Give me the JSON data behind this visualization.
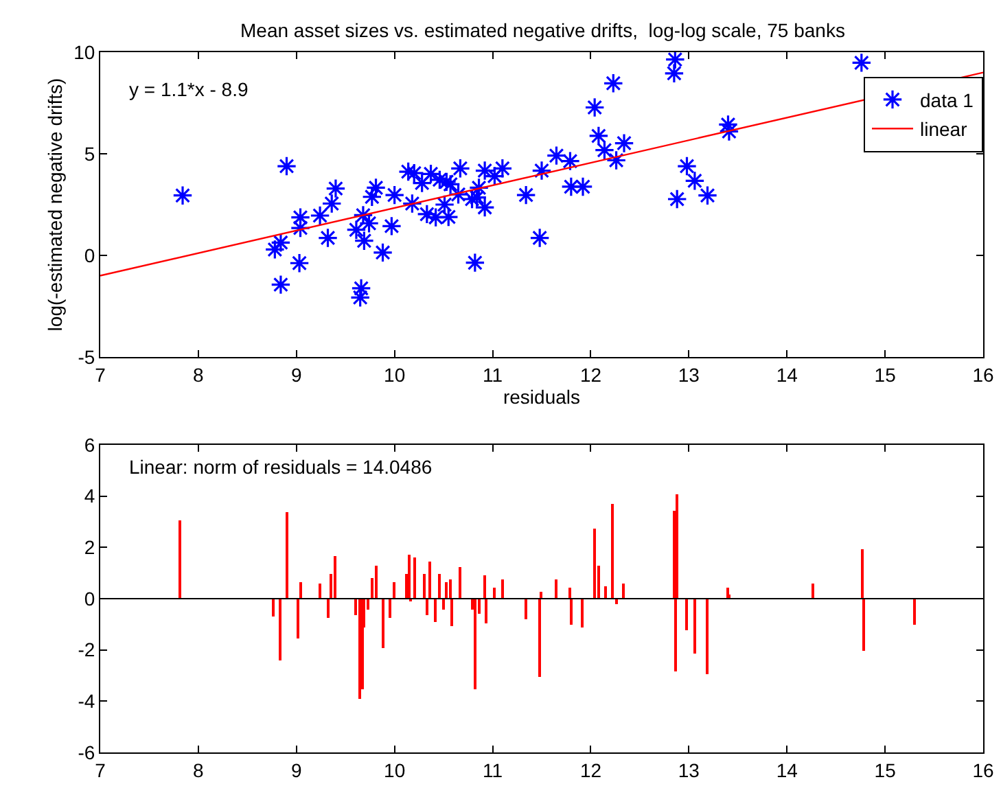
{
  "chart_data": [
    {
      "type": "scatter",
      "title": "Mean asset sizes vs. estimated negative drifts,  log-log scale, 75 banks",
      "xlabel": "residuals",
      "ylabel": "log(-estimated negative drifts)",
      "series": [
        {
          "name": "data 1",
          "type": "scatter",
          "color": "#0000ff",
          "marker": "cross",
          "x": [
            7.84,
            8.9,
            9.4,
            9.36,
            9.24,
            9.04,
            9.04,
            8.84,
            8.78,
            9.03,
            8.84,
            9.32,
            9.61,
            9.68,
            9.74,
            9.69,
            9.66,
            9.65,
            9.81,
            9.77,
            9.88,
            9.97,
            10.0,
            10.18,
            10.14,
            10.2,
            10.28,
            10.37,
            10.46,
            10.53,
            10.57,
            10.67,
            10.51,
            10.33,
            10.42,
            10.55,
            10.65,
            10.79,
            10.86,
            10.92,
            10.84,
            10.92,
            11.02,
            11.1,
            10.82,
            11.34,
            11.5,
            11.48,
            11.65,
            11.79,
            11.8,
            11.92,
            12.04,
            12.23,
            12.08,
            12.14,
            12.26,
            12.34,
            12.86,
            12.85,
            12.88,
            12.98,
            13.06,
            13.19,
            13.4,
            13.41,
            14.76
          ],
          "values": [
            2.95,
            4.39,
            3.29,
            2.55,
            1.96,
            1.87,
            1.35,
            0.63,
            0.29,
            -0.38,
            -1.44,
            0.86,
            1.26,
            1.98,
            1.58,
            0.72,
            -1.62,
            -2.07,
            3.33,
            2.88,
            0.14,
            1.44,
            2.97,
            2.55,
            4.12,
            4.05,
            3.56,
            4.01,
            3.72,
            3.62,
            3.5,
            4.28,
            2.5,
            2.03,
            1.87,
            1.89,
            3.0,
            2.77,
            3.33,
            4.17,
            2.85,
            2.36,
            3.9,
            4.28,
            -0.36,
            2.97,
            4.17,
            0.86,
            4.91,
            4.64,
            3.38,
            3.38,
            7.28,
            8.47,
            5.88,
            5.18,
            4.68,
            5.52,
            9.64,
            8.96,
            2.77,
            4.39,
            3.67,
            2.95,
            6.44,
            6.1,
            9.48
          ]
        },
        {
          "name": "linear",
          "type": "line",
          "color": "#ff0000",
          "line_style": "solid",
          "x": [
            7,
            16
          ],
          "values": [
            -1.0,
            9.0
          ]
        }
      ],
      "xlim": [
        7,
        16
      ],
      "xticks": [
        7,
        8,
        9,
        10,
        11,
        12,
        13,
        14,
        15,
        16
      ],
      "ylim": [
        -5,
        10
      ],
      "yticks": [
        -5,
        0,
        5,
        10
      ],
      "legend": "top right",
      "annotations": [
        "y = 1.1*x - 8.9"
      ]
    },
    {
      "type": "bar",
      "series": [
        {
          "color": "#ff0000",
          "x": [
            7.82,
            8.77,
            8.84,
            8.9,
            9.02,
            9.04,
            9.24,
            9.32,
            9.36,
            9.4,
            9.61,
            9.65,
            9.67,
            9.69,
            9.73,
            9.77,
            9.82,
            9.88,
            9.96,
            10.0,
            10.13,
            10.15,
            10.17,
            10.21,
            10.3,
            10.34,
            10.36,
            10.42,
            10.46,
            10.5,
            10.53,
            10.57,
            10.58,
            10.67,
            10.8,
            10.82,
            10.86,
            10.92,
            10.93,
            11.02,
            11.11,
            11.34,
            11.48,
            11.5,
            11.65,
            11.79,
            11.81,
            11.92,
            12.04,
            12.08,
            12.15,
            12.23,
            12.26,
            12.34,
            12.85,
            12.87,
            12.88,
            12.98,
            13.06,
            13.19,
            13.4,
            13.42,
            14.27,
            14.77,
            14.79,
            15.3
          ],
          "values": [
            3.05,
            -0.7,
            -2.42,
            3.37,
            -1.55,
            0.64,
            0.57,
            -0.75,
            0.96,
            1.68,
            -0.66,
            -3.92,
            -3.51,
            -1.14,
            -0.43,
            0.82,
            1.28,
            -1.94,
            -0.75,
            0.64,
            0.94,
            1.69,
            -0.11,
            1.6,
            0.96,
            -0.66,
            1.44,
            -0.91,
            0.96,
            -0.43,
            0.64,
            0.73,
            -1.05,
            1.21,
            -0.43,
            -3.51,
            -0.57,
            0.89,
            -0.96,
            0.43,
            0.73,
            -0.82,
            -3.03,
            0.25,
            0.73,
            0.41,
            -1.0,
            -1.14,
            2.73,
            1.3,
            0.5,
            3.67,
            -0.2,
            0.57,
            3.44,
            -2.83,
            4.06,
            -1.23,
            -2.12,
            -2.92,
            0.41,
            0.18,
            0.57,
            1.93,
            -2.03,
            -1.0
          ]
        }
      ],
      "xlim": [
        7,
        16
      ],
      "xticks": [
        7,
        8,
        9,
        10,
        11,
        12,
        13,
        14,
        15,
        16
      ],
      "ylim": [
        -6,
        6
      ],
      "yticks": [
        -6,
        -4,
        -2,
        0,
        2,
        4,
        6
      ],
      "ref_lines": [
        {
          "axis": "y",
          "value": 0,
          "color": "#000000"
        }
      ],
      "annotations": [
        "Linear: norm of residuals = 14.0486"
      ]
    }
  ]
}
